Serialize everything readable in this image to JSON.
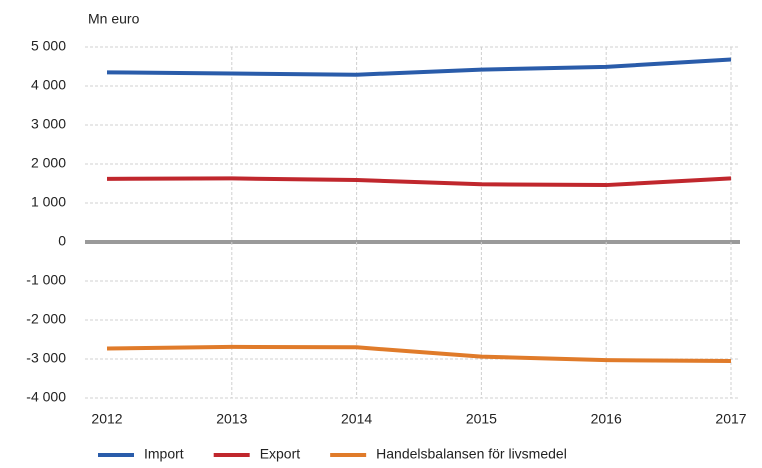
{
  "chart_data": {
    "type": "line",
    "y_label": "Mn euro",
    "categories": [
      "2012",
      "2013",
      "2014",
      "2015",
      "2016",
      "2017"
    ],
    "series": [
      {
        "name": "Import",
        "color": "#2a5caa",
        "values": [
          4350,
          4320,
          4290,
          4420,
          4490,
          4680
        ]
      },
      {
        "name": "Export",
        "color": "#c0272d",
        "values": [
          1620,
          1630,
          1590,
          1480,
          1460,
          1630
        ]
      },
      {
        "name": "Handelsbalansen för livsmedel",
        "color": "#e07b2a",
        "values": [
          -2730,
          -2690,
          -2700,
          -2940,
          -3030,
          -3050
        ]
      }
    ],
    "ylim": [
      -4000,
      5000
    ],
    "yticks": [
      {
        "value": 5000,
        "label": "5 000"
      },
      {
        "value": 4000,
        "label": "4 000"
      },
      {
        "value": 3000,
        "label": "3 000"
      },
      {
        "value": 2000,
        "label": "2 000"
      },
      {
        "value": 1000,
        "label": "1 000"
      },
      0,
      {
        "value": -1000,
        "label": "-1 000"
      },
      {
        "value": -2000,
        "label": "-2 000"
      },
      {
        "value": -3000,
        "label": "-3 000"
      },
      {
        "value": -4000,
        "label": "-4 000"
      }
    ],
    "grid": true,
    "legend": "bottom"
  }
}
